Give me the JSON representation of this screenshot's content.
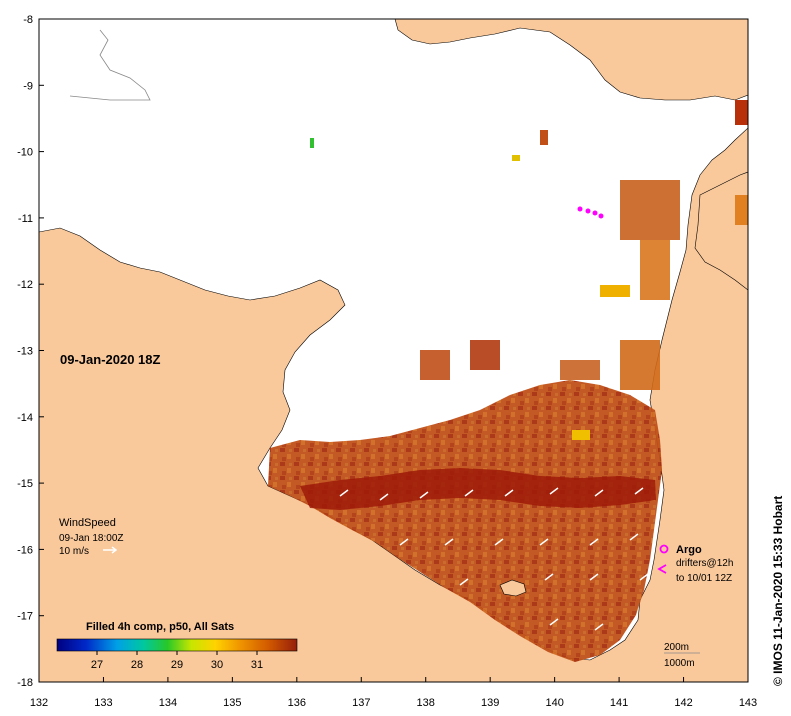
{
  "map": {
    "timestamp_label": "09-Jan-2020 18Z",
    "x_ticks": [
      "132",
      "133",
      "134",
      "135",
      "136",
      "137",
      "138",
      "139",
      "140",
      "141",
      "142",
      "143"
    ],
    "y_ticks": [
      "-8",
      "-9",
      "-10",
      "-11",
      "-12",
      "-13",
      "-14",
      "-15",
      "-16",
      "-17",
      "-18"
    ],
    "x_range": [
      132,
      143
    ],
    "y_range": [
      -18,
      -8
    ],
    "colors": {
      "land": "#f9c89b",
      "ocean_nodata": "#ffffff",
      "sst_warm": "#b8400e",
      "sst_hot": "#9e1a08",
      "argo_marker": "#ff00ff"
    }
  },
  "wind": {
    "title": "WindSpeed",
    "time": "09-Jan 18:00Z",
    "scale": "10 m/s"
  },
  "legend": {
    "title": "Filled 4h comp, p50, All Sats",
    "ticks": [
      "27",
      "28",
      "29",
      "30",
      "31"
    ],
    "range": [
      26,
      32
    ]
  },
  "markers": {
    "argo_label": "Argo",
    "drifters_label": "drifters@12h",
    "drifters_time": "to 10/01 12Z"
  },
  "contours": {
    "label_200": "200m",
    "label_1000": "1000m"
  },
  "credit": "© IMOS 11-Jan-2020 15:33 Hobart"
}
